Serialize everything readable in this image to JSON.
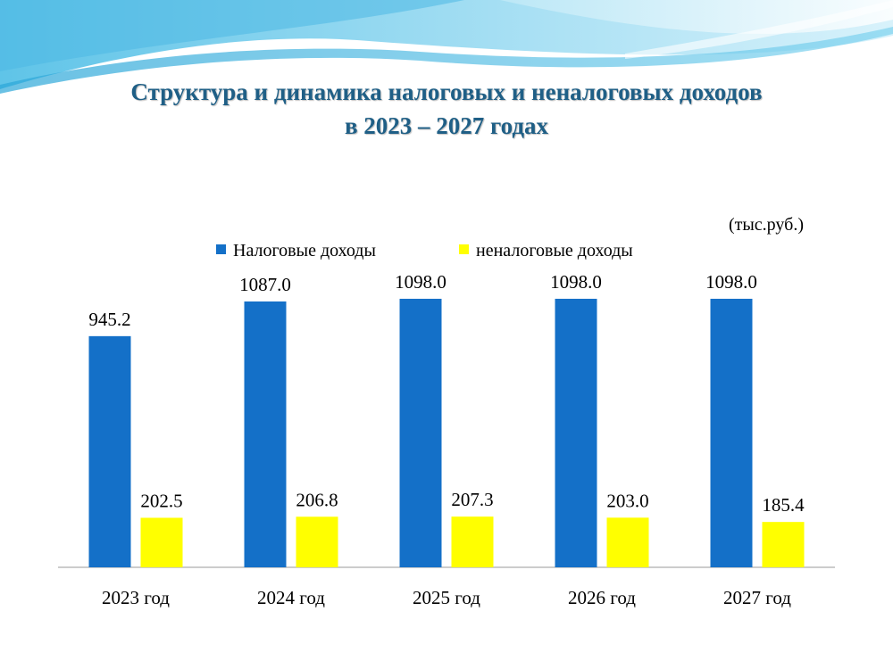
{
  "title_line1": "Структура и динамика налоговых и неналоговых доходов",
  "title_line2": "в 2023 – 2027 годах",
  "chart_data": {
    "type": "bar",
    "unit_label": "(тыс.руб.)",
    "categories": [
      "2023 год",
      "2024 год",
      "2025 год",
      "2026 год",
      "2027 год"
    ],
    "series": [
      {
        "name": "Налоговые доходы",
        "color": "#1470c8",
        "values": [
          945.2,
          1087.0,
          1098.0,
          1098.0,
          1098.0
        ]
      },
      {
        "name": "неналоговые доходы",
        "color": "#ffff00",
        "values": [
          202.5,
          206.8,
          207.3,
          203.0,
          185.4
        ]
      }
    ],
    "legend_position": "top",
    "grid": false,
    "ylim": [
      0,
      1250
    ]
  }
}
